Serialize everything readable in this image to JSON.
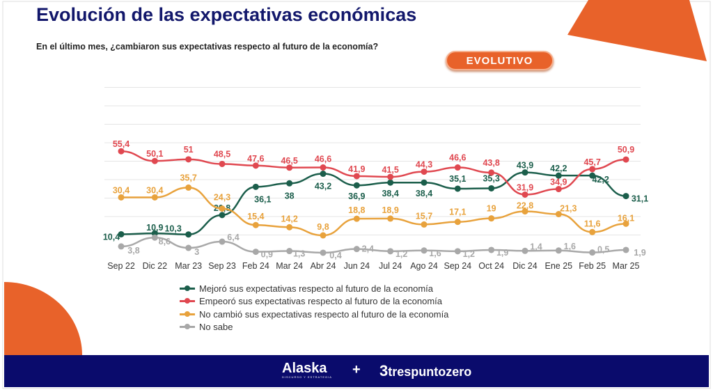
{
  "header": {
    "title": "Evolución de las expectativas económicas",
    "subtitle": "En el último mes, ¿cambiaron sus expectativas respecto al futuro de la economía?",
    "badge": "EVOLUTIVO"
  },
  "footer": {
    "brand1": "Alaska",
    "brand1_tagline": "DISCURSO Y ESTRATEGIA",
    "plus": "+",
    "brand2_mark": "3",
    "brand2": "trespuntozero"
  },
  "colors": {
    "accent": "#e8622a",
    "footer": "#0a0b6c"
  },
  "chart_data": {
    "type": "line",
    "categories": [
      "Sep 22",
      "Dic 22",
      "Mar 23",
      "Sep 23",
      "Feb 24",
      "Mar 24",
      "Abr 24",
      "Jun 24",
      "Jul 24",
      "Ago 24",
      "Sep 24",
      "Oct 24",
      "Dic 24",
      "Ene 25",
      "Feb 25",
      "Mar 25"
    ],
    "ylim": [
      0,
      90
    ],
    "grid": true,
    "legend_position": "bottom",
    "series": [
      {
        "name": "Mejoró sus expectativas respecto al futuro de la economía",
        "color": "#1b5e4b",
        "values": [
          10.4,
          10.9,
          10.3,
          20.8,
          36.1,
          38,
          43.2,
          36.9,
          38.4,
          38.4,
          35.1,
          35.3,
          43.9,
          42.2,
          42.2,
          31.1
        ],
        "labels": [
          "10,4",
          "10,9",
          "10,3",
          "20,8",
          "36,1",
          "38",
          "43,2",
          "36,9",
          "38,4",
          "38,4",
          "35,1",
          "35,3",
          "43,9",
          "42,2",
          "42,2",
          "31,1"
        ]
      },
      {
        "name": "Empeoró sus expectativas respecto al futuro de la economía",
        "color": "#e04850",
        "values": [
          55.4,
          50.1,
          51,
          48.5,
          47.6,
          46.5,
          46.6,
          41.9,
          41.5,
          44.3,
          46.6,
          43.8,
          31.9,
          34.9,
          45.7,
          50.9
        ],
        "labels": [
          "55,4",
          "50,1",
          "51",
          "48,5",
          "47,6",
          "46,5",
          "46,6",
          "41,9",
          "41,5",
          "44,3",
          "46,6",
          "43,8",
          "31,9",
          "34,9",
          "45,7",
          "50,9"
        ]
      },
      {
        "name": "No cambió sus expectativas respecto al futuro de la economía",
        "color": "#e8a23c",
        "values": [
          30.4,
          30.4,
          35.7,
          24.3,
          15.4,
          14.2,
          9.8,
          18.8,
          18.9,
          15.7,
          17.1,
          19,
          22.8,
          21.3,
          11.6,
          16.1
        ],
        "labels": [
          "30,4",
          "30,4",
          "35,7",
          "24,3",
          "15,4",
          "14,2",
          "9,8",
          "18,8",
          "18,9",
          "15,7",
          "17,1",
          "19",
          "22,8",
          "21,3",
          "11,6",
          "16,1"
        ]
      },
      {
        "name": "No sabe",
        "color": "#a8a8a8",
        "values": [
          3.8,
          8.6,
          3,
          6.4,
          0.9,
          1.3,
          0.4,
          2.4,
          1.2,
          1.6,
          1.2,
          1.9,
          1.4,
          1.6,
          0.5,
          1.9
        ],
        "labels": [
          "3,8",
          "8,6",
          "3",
          "6,4",
          "0,9",
          "1,3",
          "0,4",
          "2,4",
          "1,2",
          "1,6",
          "1,2",
          "1,9",
          "1,4",
          "1,6",
          "0,5",
          "1,9"
        ]
      }
    ]
  }
}
